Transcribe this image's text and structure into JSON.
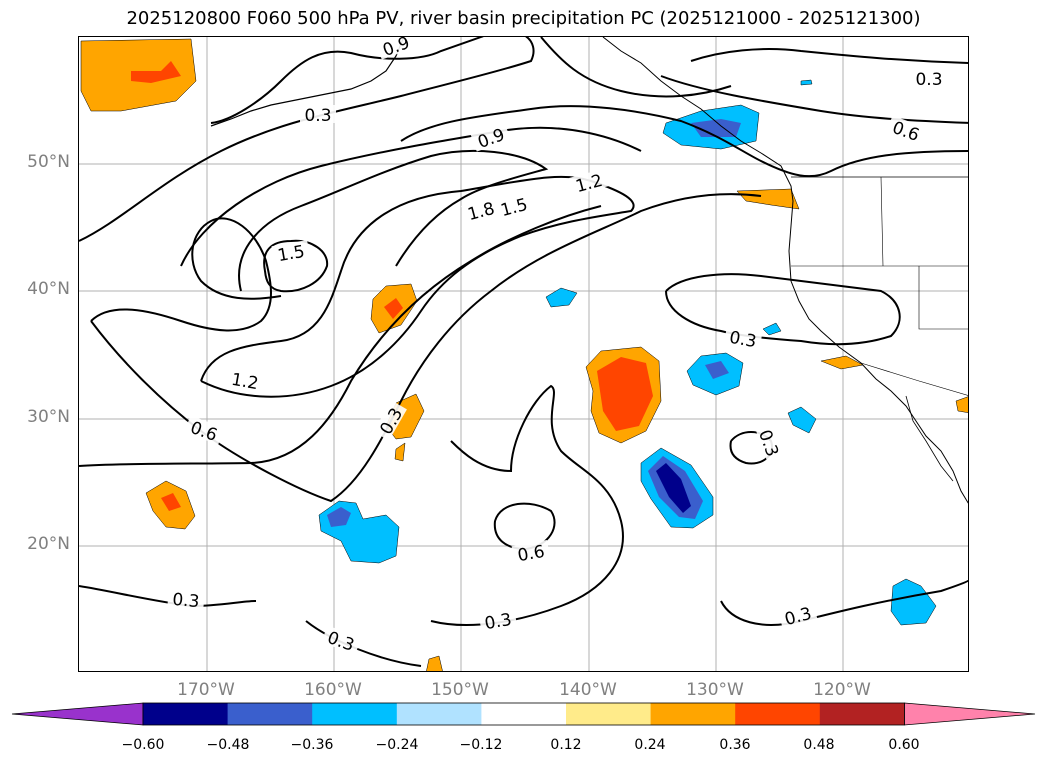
{
  "title": "2025120800 F060 500 hPa PV, river basin precipitation PC (2025121000 - 2025121300)",
  "lat_labels": [
    "50°N",
    "40°N",
    "30°N",
    "20°N"
  ],
  "lon_labels": [
    "170°W",
    "160°W",
    "150°W",
    "140°W",
    "130°W",
    "120°W"
  ],
  "contour_labels": [
    "0.3",
    "0.9",
    "0.6",
    "1.8",
    "1.5",
    "1.2",
    "1.5",
    "1.2",
    "0.6",
    "0.3",
    "0.3",
    "0.3",
    "0.6",
    "0.3",
    "0.3",
    "0.3",
    "0.3",
    "0.9",
    "0.3"
  ],
  "colorbar": {
    "ticks": [
      "−0.60",
      "−0.48",
      "−0.36",
      "−0.24",
      "−0.12",
      "0.12",
      "0.24",
      "0.36",
      "0.48",
      "0.60"
    ],
    "colors": [
      "#9932cc",
      "#00008b",
      "#3a5fcd",
      "#00bfff",
      "#b0e2ff",
      "#ffffff",
      "#ffeb8a",
      "#ffa500",
      "#ff4500",
      "#b22222",
      "#ff82ab"
    ]
  }
}
